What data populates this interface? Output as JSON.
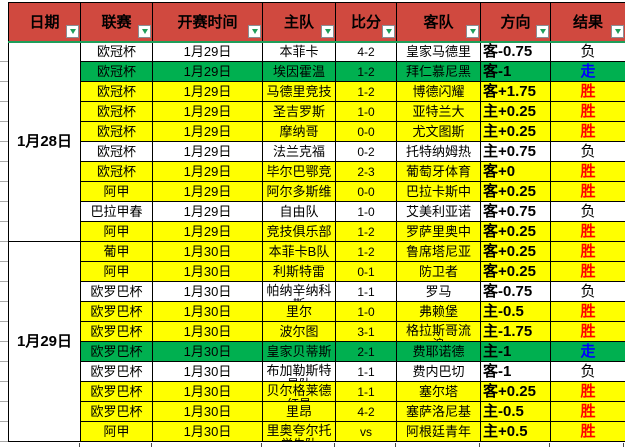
{
  "sheet": {
    "columns": [
      {
        "key": "date",
        "label": "日期"
      },
      {
        "key": "league",
        "label": "联赛"
      },
      {
        "key": "start-time",
        "label": "开赛时间"
      },
      {
        "key": "home-team",
        "label": "主队"
      },
      {
        "key": "score",
        "label": "比分"
      },
      {
        "key": "away-team",
        "label": "客队"
      },
      {
        "key": "direction",
        "label": "方向"
      },
      {
        "key": "result",
        "label": "结果"
      }
    ],
    "groups": [
      {
        "date": "1月28日",
        "rows": [
          {
            "league": "欧冠杯",
            "time": "1月29日",
            "home": "本菲卡",
            "score": "4-2",
            "away": "皇家马德里",
            "direction": "客-0.75",
            "result": "负",
            "bg": "white",
            "result_color": "black"
          },
          {
            "league": "欧冠杯",
            "time": "1月29日",
            "home": "埃因霍温",
            "score": "1-2",
            "away": "拜仁慕尼黑",
            "direction": "客-1",
            "result": "走",
            "bg": "green",
            "result_color": "blue"
          },
          {
            "league": "欧冠杯",
            "time": "1月29日",
            "home": "马德里竞技",
            "score": "1-2",
            "away": "博德闪耀",
            "direction": "客+1.75",
            "result": "胜",
            "bg": "yellow",
            "result_color": "red"
          },
          {
            "league": "欧冠杯",
            "time": "1月29日",
            "home": "圣吉罗斯",
            "score": "1-0",
            "away": "亚特兰大",
            "direction": "主+0.25",
            "result": "胜",
            "bg": "yellow",
            "result_color": "red"
          },
          {
            "league": "欧冠杯",
            "time": "1月29日",
            "home": "摩纳哥",
            "score": "0-0",
            "away": "尤文图斯",
            "direction": "主+0.25",
            "result": "胜",
            "bg": "yellow",
            "result_color": "red"
          },
          {
            "league": "欧冠杯",
            "time": "1月29日",
            "home": "法兰克福",
            "score": "0-2",
            "away": "托特纳姆热",
            "direction": "主+0.75",
            "result": "负",
            "bg": "white",
            "result_color": "black"
          },
          {
            "league": "欧冠杯",
            "time": "1月29日",
            "home": "毕尔巴鄂竞",
            "score": "2-3",
            "away": "葡萄牙体育",
            "direction": "客+0",
            "result": "胜",
            "bg": "yellow",
            "result_color": "red"
          },
          {
            "league": "阿甲",
            "time": "1月29日",
            "home": "阿尔多斯维",
            "score": "0-0",
            "away": "巴拉卡斯中",
            "direction": "客+0.25",
            "result": "胜",
            "bg": "yellow",
            "result_color": "red"
          },
          {
            "league": "巴拉甲春",
            "time": "1月29日",
            "home": "自由队",
            "score": "1-0",
            "away": "艾美利亚诺",
            "direction": "客+0.75",
            "result": "负",
            "bg": "white",
            "result_color": "black"
          },
          {
            "league": "阿甲",
            "time": "1月29日",
            "home": "竞技俱乐部",
            "score": "1-2",
            "away": "罗萨里奥中",
            "direction": "客+0.25",
            "result": "胜",
            "bg": "yellow",
            "result_color": "red"
          }
        ]
      },
      {
        "date": "1月29日",
        "rows": [
          {
            "league": "葡甲",
            "time": "1月30日",
            "home": "本菲卡B队",
            "score": "1-2",
            "away": "鲁席塔尼亚",
            "direction": "客+0.25",
            "result": "胜",
            "bg": "yellow",
            "result_color": "red"
          },
          {
            "league": "阿甲",
            "time": "1月30日",
            "home": "利斯特雷",
            "score": "0-1",
            "away": "防卫者",
            "direction": "客+0.25",
            "result": "胜",
            "bg": "yellow",
            "result_color": "red"
          },
          {
            "league": "欧罗巴杯",
            "time": "1月30日",
            "home": "帕纳辛纳科",
            "home2": "斯",
            "score": "1-1",
            "away": "罗马",
            "direction": "客-0.75",
            "result": "负",
            "bg": "white",
            "result_color": "black"
          },
          {
            "league": "欧罗巴杯",
            "time": "1月30日",
            "home": "里尔",
            "score": "1-0",
            "away": "弗赖堡",
            "direction": "主-0.5",
            "result": "胜",
            "bg": "yellow",
            "result_color": "red"
          },
          {
            "league": "欧罗巴杯",
            "time": "1月30日",
            "home": "波尔图",
            "score": "3-1",
            "away": "格拉斯哥流",
            "away2": "浪",
            "direction": "主-1.75",
            "result": "胜",
            "bg": "yellow",
            "result_color": "red"
          },
          {
            "league": "欧罗巴杯",
            "time": "1月30日",
            "home": "皇家贝蒂斯",
            "score": "2-1",
            "away": "费耶诺德",
            "direction": "主-1",
            "result": "走",
            "bg": "green",
            "result_color": "blue"
          },
          {
            "league": "欧罗巴杯",
            "time": "1月30日",
            "home": "布加勒斯特",
            "home2": "星队",
            "score": "1-1",
            "away": "费内巴切",
            "direction": "客-1",
            "result": "负",
            "bg": "white",
            "result_color": "black"
          },
          {
            "league": "欧罗巴杯",
            "time": "1月30日",
            "home": "贝尔格莱德",
            "home2": "红星",
            "score": "1-1",
            "away": "塞尔塔",
            "direction": "客+0.25",
            "result": "胜",
            "bg": "yellow",
            "result_color": "red"
          },
          {
            "league": "欧罗巴杯",
            "time": "1月30日",
            "home": "里昂",
            "score": "4-2",
            "away": "塞萨洛尼基",
            "direction": "主-0.5",
            "result": "胜",
            "bg": "yellow",
            "result_color": "red"
          },
          {
            "league": "阿甲",
            "time": "1月30日",
            "home": "里奥夸尔托",
            "home2": "学生队",
            "score": "vs",
            "away": "阿根廷青年",
            "direction": "主+0.5",
            "result": "胜",
            "bg": "yellow",
            "result_color": "red"
          }
        ]
      }
    ]
  },
  "colors": {
    "header_bg": "#d0493f",
    "header_text": "#000000",
    "row_yellow": "#ffff00",
    "row_green": "#00b050",
    "row_white": "#ffffff",
    "grid_line": "#000000",
    "result_win_red": "#ff0000",
    "result_push_blue": "#0000ff",
    "accent_green": "#1f9e5a"
  }
}
